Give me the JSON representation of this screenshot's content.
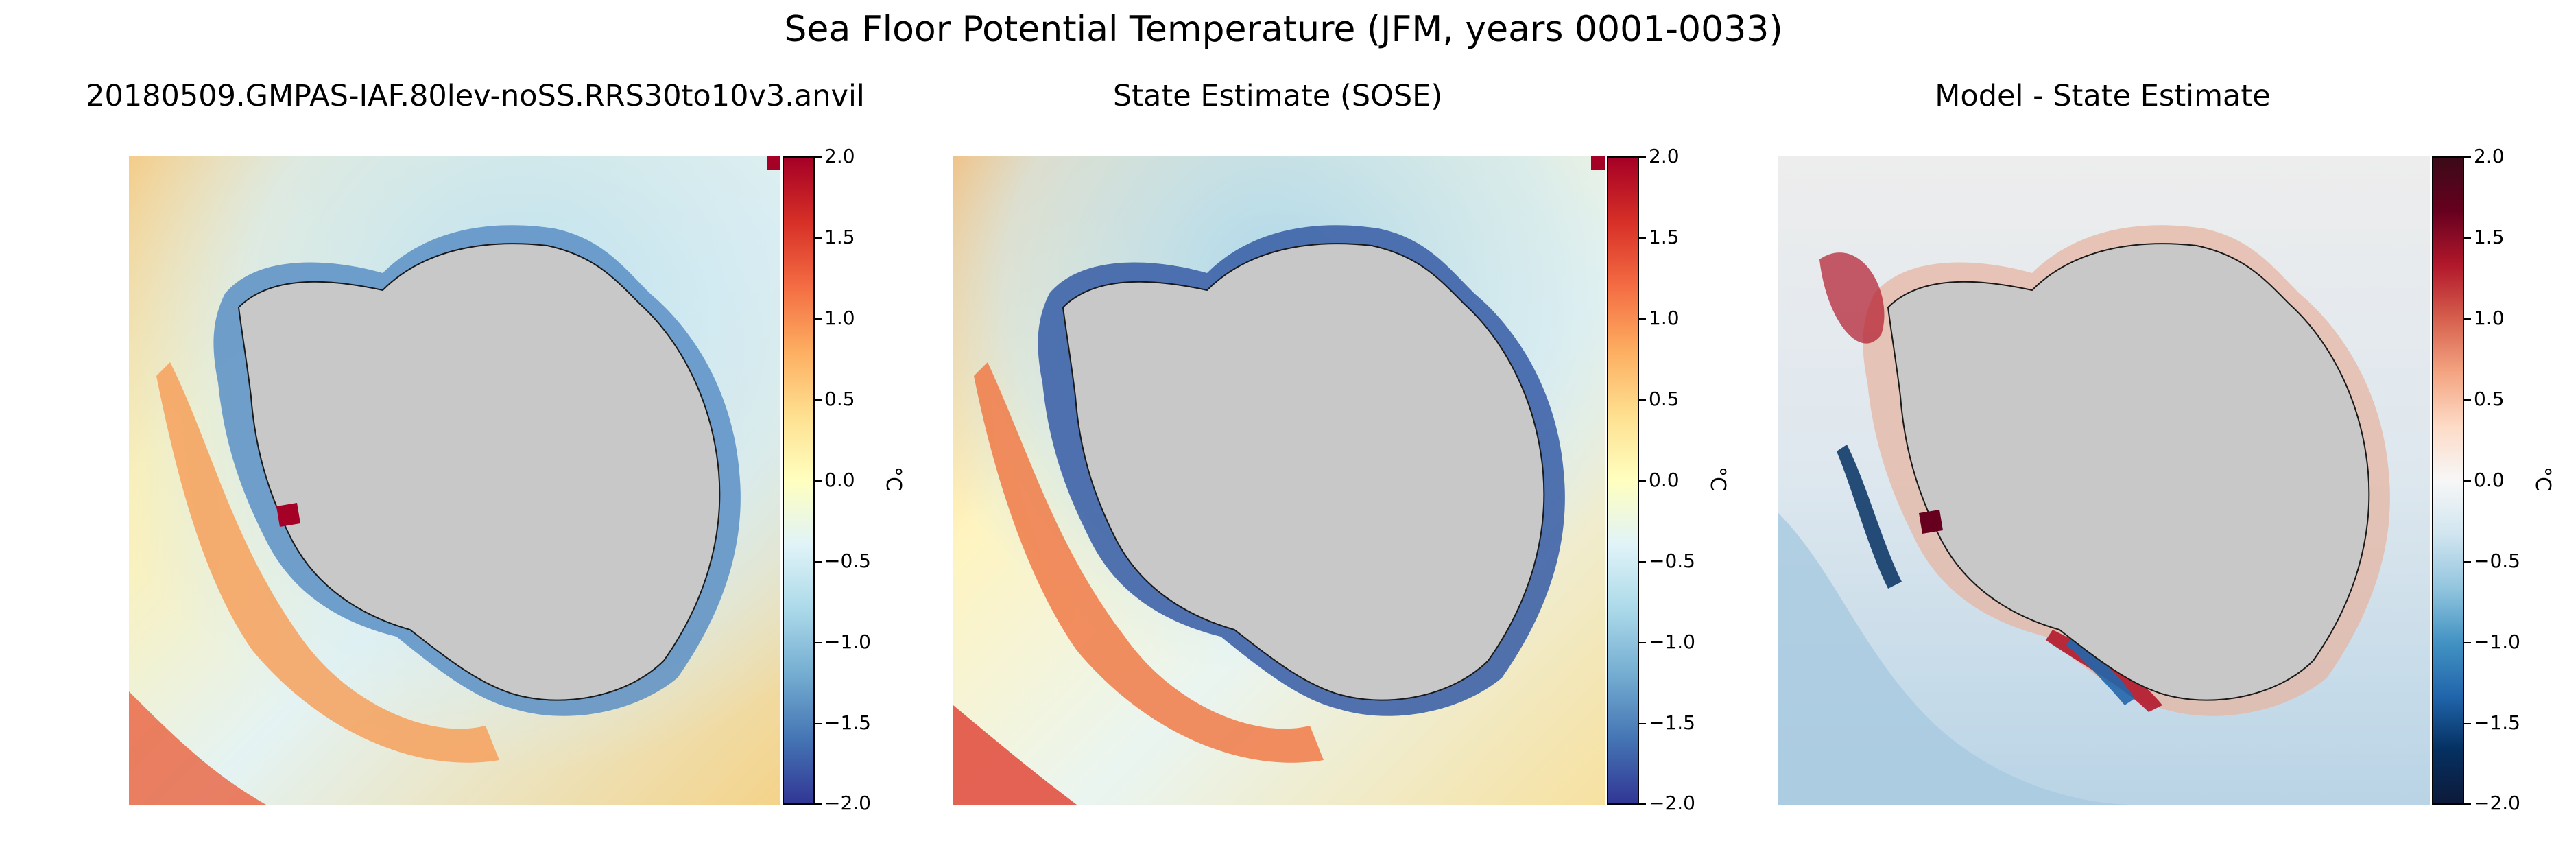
{
  "title": "Sea Floor Potential Temperature (JFM, years 0001-0033)",
  "panels": [
    {
      "title": "20180509.GMPAS-IAF.80lev-noSS.RRS30to10v3.anvil",
      "colormap": "RdYlBu_r",
      "colorbar": {
        "ticks": [
          "2.0",
          "1.5",
          "1.0",
          "0.5",
          "0.0",
          "−0.5",
          "−1.0",
          "−1.5",
          "−2.0"
        ],
        "unit": "°C",
        "range": [
          -2.0,
          2.0
        ]
      }
    },
    {
      "title": "State Estimate (SOSE)",
      "colormap": "RdYlBu_r",
      "colorbar": {
        "ticks": [
          "2.0",
          "1.5",
          "1.0",
          "0.5",
          "0.0",
          "−0.5",
          "−1.0",
          "−1.5",
          "−2.0"
        ],
        "unit": "°C",
        "range": [
          -2.0,
          2.0
        ]
      }
    },
    {
      "title": "Model - State Estimate",
      "colormap": "RdBu_r",
      "colorbar": {
        "ticks": [
          "2.0",
          "1.5",
          "1.0",
          "0.5",
          "0.0",
          "−0.5",
          "−1.0",
          "−1.5",
          "−2.0"
        ],
        "unit": "°C",
        "range": [
          -2.0,
          2.0
        ]
      }
    }
  ],
  "colors": {
    "land": "#c8c8c8",
    "coast": "#1a1a1a",
    "warm_strong": "#a50026",
    "warm": "#f46d43",
    "warm_light": "#fee090",
    "neutral": "#ffffbf",
    "cool_light": "#e0f3f8",
    "cool": "#74add1",
    "cool_strong": "#313695",
    "diff_pos": "#67001f",
    "diff_neutral": "#f7f7f7",
    "diff_neg": "#053061"
  }
}
